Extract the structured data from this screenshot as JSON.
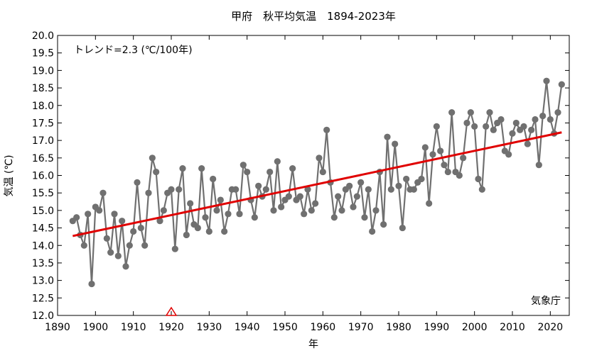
{
  "chart_data": {
    "type": "line",
    "title": "甲府　秋平均気温　1894-2023年",
    "xlabel": "年",
    "ylabel": "気温 (℃)",
    "xlim": [
      1890,
      2025
    ],
    "ylim": [
      12.0,
      20.0
    ],
    "xticks": [
      1890,
      1900,
      1910,
      1920,
      1930,
      1940,
      1950,
      1960,
      1970,
      1980,
      1990,
      2000,
      2010,
      2020
    ],
    "yticks": [
      "12.0",
      "12.5",
      "13.0",
      "13.5",
      "14.0",
      "14.5",
      "15.0",
      "15.5",
      "16.0",
      "16.5",
      "17.0",
      "17.5",
      "18.0",
      "18.5",
      "19.0",
      "19.5",
      "20.0"
    ],
    "grid": false,
    "trend_label": "トレンド=2.3 (℃/100年)",
    "source_label": "気象庁",
    "colors": {
      "series": "#707070",
      "trend": "#e00000",
      "marker_event": "#e00000"
    },
    "series": [
      {
        "x": [
          1894,
          1895,
          1896,
          1897,
          1898,
          1899,
          1900,
          1901,
          1902,
          1903,
          1904,
          1905,
          1906,
          1907,
          1908,
          1909,
          1910,
          1911,
          1912,
          1913,
          1914,
          1915,
          1916,
          1917,
          1918,
          1919,
          1920,
          1921,
          1922,
          1923,
          1924,
          1925,
          1926,
          1927,
          1928,
          1929,
          1930,
          1931,
          1932,
          1933,
          1934,
          1935,
          1936,
          1937,
          1938,
          1939,
          1940,
          1941,
          1942,
          1943,
          1944,
          1945,
          1946,
          1947,
          1948,
          1949,
          1950,
          1951,
          1952,
          1953,
          1954,
          1955,
          1956,
          1957,
          1958,
          1959,
          1960,
          1961,
          1962,
          1963,
          1964,
          1965,
          1966,
          1967,
          1968,
          1969,
          1970,
          1971,
          1972,
          1973,
          1974,
          1975,
          1976,
          1977,
          1978,
          1979,
          1980,
          1981,
          1982,
          1983,
          1984,
          1985,
          1986,
          1987,
          1988,
          1989,
          1990,
          1991,
          1992,
          1993,
          1994,
          1995,
          1996,
          1997,
          1998,
          1999,
          2000,
          2001,
          2002,
          2003,
          2004,
          2005,
          2006,
          2007,
          2008,
          2009,
          2010,
          2011,
          2012,
          2013,
          2014,
          2015,
          2016,
          2017,
          2018,
          2019,
          2020,
          2021,
          2022,
          2023
        ],
        "values": [
          14.7,
          14.8,
          14.3,
          14.0,
          14.9,
          12.9,
          15.1,
          15.0,
          15.5,
          14.2,
          13.8,
          14.9,
          13.7,
          14.7,
          13.4,
          14.0,
          14.4,
          15.8,
          14.5,
          14.0,
          15.5,
          16.5,
          16.1,
          14.7,
          15.0,
          15.5,
          15.6,
          13.9,
          15.6,
          16.2,
          14.3,
          15.2,
          14.6,
          14.5,
          16.2,
          14.8,
          14.4,
          15.9,
          15.0,
          15.3,
          14.4,
          14.9,
          15.6,
          15.6,
          14.9,
          16.3,
          16.1,
          15.3,
          14.8,
          15.7,
          15.4,
          15.6,
          16.1,
          15.0,
          16.4,
          15.1,
          15.3,
          15.4,
          16.2,
          15.3,
          15.4,
          14.9,
          15.6,
          15.0,
          15.2,
          16.5,
          16.1,
          17.3,
          15.8,
          14.8,
          15.4,
          15.0,
          15.6,
          15.7,
          15.1,
          15.4,
          15.8,
          14.8,
          15.6,
          14.4,
          15.0,
          16.1,
          14.6,
          17.1,
          15.6,
          16.9,
          15.7,
          14.5,
          15.9,
          15.6,
          15.6,
          15.8,
          15.9,
          16.8,
          15.2,
          16.6,
          17.4,
          16.7,
          16.3,
          16.1,
          17.8,
          16.1,
          16.0,
          16.5,
          17.5,
          17.8,
          17.4,
          15.9,
          15.6,
          17.4,
          17.8,
          17.3,
          17.5,
          17.6,
          16.7,
          16.6,
          17.2,
          17.5,
          17.3,
          17.4,
          16.9,
          17.3,
          17.6,
          16.3,
          17.7,
          18.7,
          17.6,
          17.2,
          17.8,
          18.6
        ]
      }
    ],
    "trend": {
      "x": [
        1894,
        2023
      ],
      "y": [
        14.27,
        17.23
      ]
    },
    "event_marker": {
      "x": 1920,
      "y": 12.0
    }
  }
}
